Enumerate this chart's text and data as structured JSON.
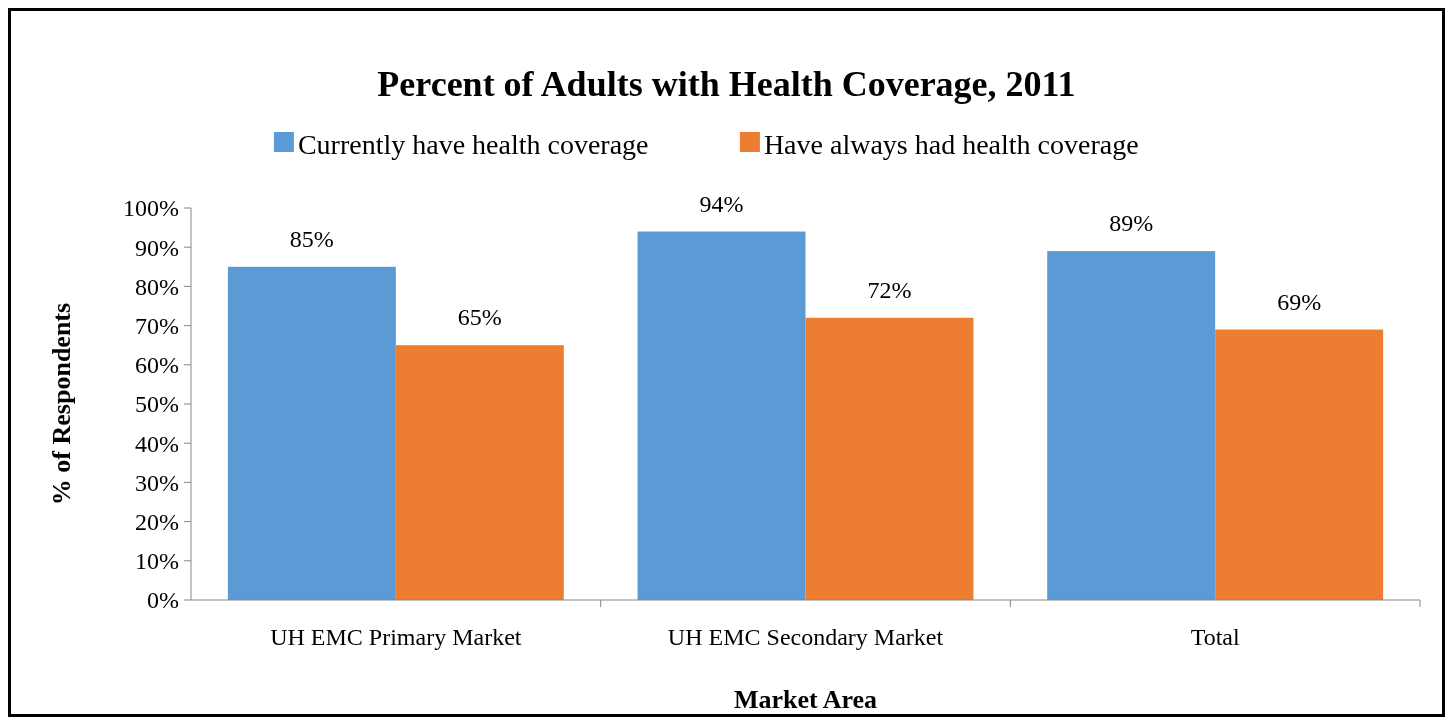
{
  "chart_data": {
    "type": "bar",
    "title": "Percent of Adults with Health Coverage, 2011",
    "xlabel": "Market Area",
    "ylabel": "% of Respondents",
    "categories": [
      "UH EMC Primary Market",
      "UH EMC Secondary Market",
      "Total"
    ],
    "series": [
      {
        "name": "Currently have health coverage",
        "color": "#5b9bd5",
        "values": [
          85,
          94,
          89
        ],
        "value_labels": [
          "85%",
          "94%",
          "89%"
        ]
      },
      {
        "name": "Have always had health coverage",
        "color": "#ed7d31",
        "values": [
          65,
          72,
          69
        ],
        "value_labels": [
          "65%",
          "72%",
          "69%"
        ]
      }
    ],
    "ylim": [
      0,
      100
    ],
    "yticks": [
      {
        "value": 0,
        "label": "0%"
      },
      {
        "value": 10,
        "label": "10%"
      },
      {
        "value": 20,
        "label": "20%"
      },
      {
        "value": 30,
        "label": "30%"
      },
      {
        "value": 40,
        "label": "40%"
      },
      {
        "value": 50,
        "label": "50%"
      },
      {
        "value": 60,
        "label": "60%"
      },
      {
        "value": 70,
        "label": "70%"
      },
      {
        "value": 80,
        "label": "80%"
      },
      {
        "value": 90,
        "label": "90%"
      },
      {
        "value": 100,
        "label": "100%"
      }
    ],
    "grid": false,
    "legend": "top"
  }
}
